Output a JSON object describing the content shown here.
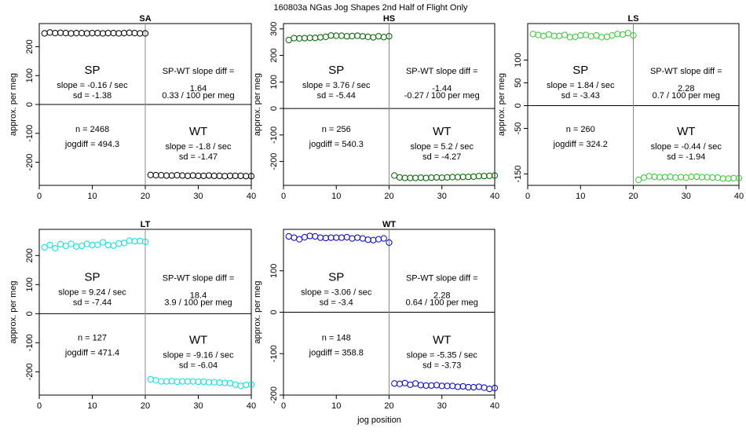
{
  "figure_title": "160803a   NGas Jog Shapes 2nd Half of Flight Only",
  "x_label": "jog position",
  "chart_data": [
    {
      "type": "scatter",
      "title": "SA",
      "ylabel": "approx. per meg",
      "color": "#000000",
      "xlim": [
        0,
        40
      ],
      "ylim": [
        -280,
        280
      ],
      "xticks": [
        0,
        10,
        20,
        30,
        40
      ],
      "yticks": [
        -200,
        -100,
        0,
        100,
        200
      ],
      "show_xlabel": false,
      "sp_values": [
        246,
        249,
        247,
        248,
        247,
        246,
        247,
        247,
        246,
        247,
        247,
        246,
        247,
        247,
        246,
        247,
        248,
        247,
        246,
        246
      ],
      "wt_values": [
        -244,
        -245,
        -245,
        -246,
        -246,
        -245,
        -246,
        -247,
        -246,
        -247,
        -247,
        -246,
        -247,
        -247,
        -248,
        -247,
        -247,
        -247,
        -248,
        -248
      ],
      "stats": {
        "sp_label": "SP",
        "sp_slope": "slope = -0.16 / sec",
        "sp_sd": "sd = -1.38",
        "diff_title": "SP-WT slope diff =",
        "diff_value": "1.64",
        "diff_per_meg": "0.33 / 100 per meg",
        "n": "n = 2468",
        "jogdiff": "jogdiff = 494.3",
        "wt_label": "WT",
        "wt_slope": "slope = -1.8 / sec",
        "wt_sd": "sd = -1.47"
      }
    },
    {
      "type": "scatter",
      "title": "HS",
      "ylabel": "approx. per meg",
      "color": "#006400",
      "xlim": [
        0,
        40
      ],
      "ylim": [
        -290,
        320
      ],
      "xticks": [
        0,
        10,
        20,
        30,
        40
      ],
      "yticks": [
        -200,
        -100,
        0,
        100,
        200,
        300
      ],
      "show_xlabel": false,
      "sp_values": [
        258,
        265,
        264,
        265,
        266,
        266,
        268,
        270,
        275,
        274,
        274,
        272,
        273,
        274,
        272,
        270,
        268,
        272,
        269,
        272
      ],
      "wt_values": [
        -253,
        -260,
        -262,
        -262,
        -262,
        -261,
        -262,
        -261,
        -260,
        -261,
        -260,
        -259,
        -259,
        -258,
        -258,
        -257,
        -255,
        -255,
        -254,
        -253
      ],
      "stats": {
        "sp_label": "SP",
        "sp_slope": "slope = 3.76 / sec",
        "sp_sd": "sd = -5.44",
        "diff_title": "SP-WT slope diff =",
        "diff_value": "-1.44",
        "diff_per_meg": "-0.27 / 100 per meg",
        "n": "n = 256",
        "jogdiff": "jogdiff = 540.3",
        "wt_label": "WT",
        "wt_slope": "slope = 5.2 / sec",
        "wt_sd": "sd = -4.27"
      }
    },
    {
      "type": "scatter",
      "title": "LS",
      "ylabel": "approx. per meg",
      "color": "#33cc33",
      "xlim": [
        0,
        40
      ],
      "ylim": [
        -175,
        180
      ],
      "xticks": [
        0,
        10,
        20,
        30,
        40
      ],
      "yticks": [
        -150,
        -50,
        0,
        50,
        100
      ],
      "show_xlabel": false,
      "sp_values": [
        157,
        155,
        153,
        156,
        153,
        153,
        155,
        150,
        151,
        154,
        155,
        152,
        154,
        150,
        151,
        154,
        157,
        156,
        159,
        154
      ],
      "wt_values": [
        -163,
        -158,
        -155,
        -156,
        -157,
        -157,
        -156,
        -158,
        -157,
        -158,
        -156,
        -156,
        -157,
        -157,
        -158,
        -158,
        -160,
        -160,
        -159,
        -159
      ],
      "stats": {
        "sp_label": "SP",
        "sp_slope": "slope = 1.84 / sec",
        "sp_sd": "sd = -3.43",
        "diff_title": "SP-WT slope diff =",
        "diff_value": "2.28",
        "diff_per_meg": "0.7 / 100 per meg",
        "n": "n = 260",
        "jogdiff": "jogdiff = 324.2",
        "wt_label": "WT",
        "wt_slope": "slope = -0.44 / sec",
        "wt_sd": "sd = -1.94"
      }
    },
    {
      "type": "scatter",
      "title": "LT",
      "ylabel": "approx. per meg",
      "color": "#00e5e5",
      "xlim": [
        0,
        40
      ],
      "ylim": [
        -280,
        290
      ],
      "xticks": [
        0,
        10,
        20,
        30,
        40
      ],
      "yticks": [
        -200,
        -100,
        0,
        100,
        200
      ],
      "show_xlabel": false,
      "sp_values": [
        228,
        236,
        225,
        239,
        233,
        240,
        231,
        233,
        240,
        236,
        237,
        245,
        236,
        234,
        241,
        243,
        251,
        249,
        250,
        247
      ],
      "wt_values": [
        -226,
        -229,
        -233,
        -233,
        -232,
        -234,
        -233,
        -233,
        -233,
        -234,
        -234,
        -236,
        -236,
        -237,
        -238,
        -239,
        -244,
        -248,
        -245,
        -244
      ],
      "stats": {
        "sp_label": "SP",
        "sp_slope": "slope = 9.24 / sec",
        "sp_sd": "sd = -7.44",
        "diff_title": "SP-WT slope diff =",
        "diff_value": "18.4",
        "diff_per_meg": "3.9 / 100 per meg",
        "n": "n = 127",
        "jogdiff": "jogdiff = 471.4",
        "wt_label": "WT",
        "wt_slope": "slope = -9.16 / sec",
        "wt_sd": "sd = -6.04"
      }
    },
    {
      "type": "scatter",
      "title": "WT",
      "ylabel": "approx. per meg",
      "color": "#0000dd",
      "xlim": [
        0,
        40
      ],
      "ylim": [
        -200,
        200
      ],
      "xticks": [
        0,
        10,
        20,
        30,
        40
      ],
      "yticks": [
        -200,
        -100,
        0,
        100
      ],
      "show_xlabel": true,
      "sp_values": [
        183,
        180,
        176,
        181,
        184,
        183,
        180,
        179,
        180,
        180,
        180,
        181,
        178,
        180,
        178,
        175,
        174,
        176,
        178,
        168
      ],
      "wt_values": [
        -172,
        -173,
        -171,
        -175,
        -172,
        -176,
        -177,
        -177,
        -176,
        -178,
        -178,
        -178,
        -180,
        -179,
        -181,
        -181,
        -180,
        -182,
        -185,
        -183
      ],
      "stats": {
        "sp_label": "SP",
        "sp_slope": "slope = -3.06 / sec",
        "sp_sd": "sd = -3.4",
        "diff_title": "SP-WT slope diff =",
        "diff_value": "2.28",
        "diff_per_meg": "0.64 / 100 per meg",
        "n": "n = 148",
        "jogdiff": "jogdiff = 358.8",
        "wt_label": "WT",
        "wt_slope": "slope = -5.35 / sec",
        "wt_sd": "sd = -3.73"
      }
    }
  ]
}
